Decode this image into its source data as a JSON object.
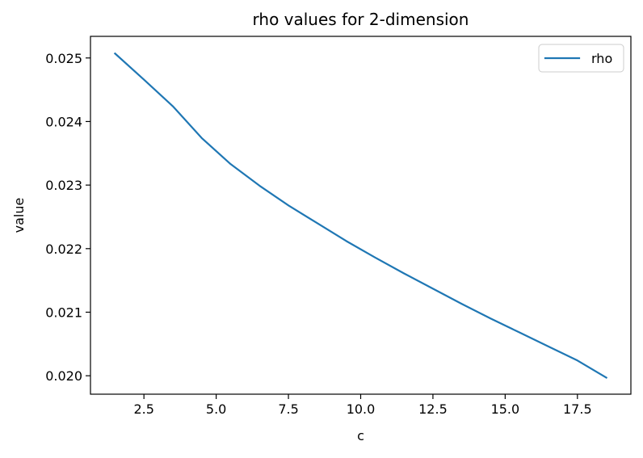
{
  "chart_data": {
    "type": "line",
    "title": "rho values for 2-dimension",
    "xlabel": "c",
    "ylabel": "value",
    "xlim": [
      0.65,
      19.35
    ],
    "ylim": [
      0.01971,
      0.02534
    ],
    "x_ticks": [
      2.5,
      5.0,
      7.5,
      10.0,
      12.5,
      15.0,
      17.5
    ],
    "x_tick_labels": [
      "2.5",
      "5.0",
      "7.5",
      "10.0",
      "12.5",
      "15.0",
      "17.5"
    ],
    "y_ticks": [
      0.02,
      0.021,
      0.022,
      0.023,
      0.024,
      0.025
    ],
    "y_tick_labels": [
      "0.020",
      "0.021",
      "0.022",
      "0.023",
      "0.024",
      "0.025"
    ],
    "grid": false,
    "legend_position": "top-right",
    "series": [
      {
        "name": "rho",
        "color": "#1f77b4",
        "x": [
          1.5,
          2.5,
          3.5,
          4.5,
          5.5,
          6.5,
          7.5,
          8.5,
          9.5,
          10.5,
          11.5,
          12.5,
          13.5,
          14.5,
          15.5,
          16.5,
          17.5,
          18.5
        ],
        "y": [
          0.02507,
          0.02466,
          0.02424,
          0.02374,
          0.02333,
          0.02299,
          0.02268,
          0.0224,
          0.02212,
          0.02186,
          0.02161,
          0.02137,
          0.02113,
          0.0209,
          0.02068,
          0.02046,
          0.02024,
          0.01997
        ]
      }
    ]
  }
}
